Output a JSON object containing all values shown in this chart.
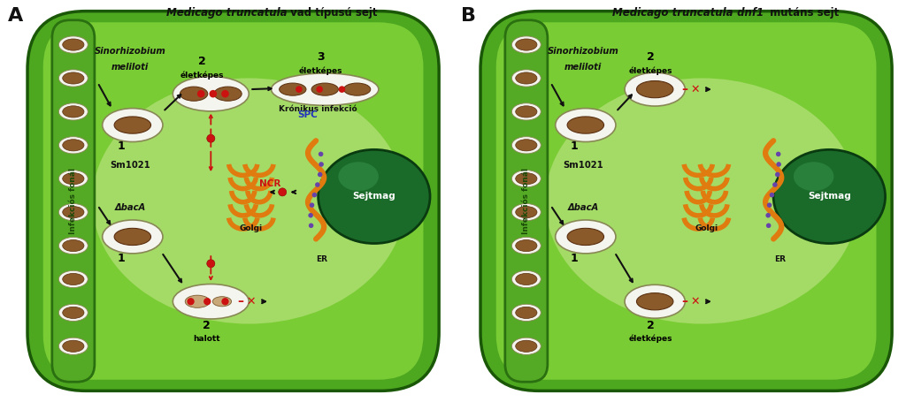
{
  "fig_width": 10.24,
  "fig_height": 4.55,
  "background_color": "#ffffff",
  "cell_outer_color": "#4da820",
  "cell_inner_color": "#7acc35",
  "cell_highlight_color": "#c8e890",
  "organelle_color": "#e07b10",
  "bacteroid_color": "#8b5a2b",
  "bacteroid_dark": "#5a3010",
  "red_color": "#cc1111",
  "blue_color": "#2233bb",
  "sejtmag_color": "#1a6b2a",
  "sejtmag_light": "#3a9a50",
  "arrow_color": "#111111",
  "thread_color": "#55aa25",
  "thread_border": "#2a7010",
  "white_color": "#f5f5f0",
  "panel_A_title1": "Medicago truncatula",
  "panel_A_title2": " vad típusú sejt",
  "panel_B_title1": "Medicago truncatula",
  "panel_B_title2": " dnf1",
  "panel_B_title3": " mutáns sejt",
  "label_infekcios": "Infekciós fonál",
  "label_sino1": "Sinorhizobium",
  "label_sino2": "meliloti",
  "label_sm": "Sm1021",
  "label_baca": "ΔbacA",
  "label_golgi": "Golgi",
  "label_er": "ER",
  "label_spc": "SPC",
  "label_ncr": "NCR",
  "label_sejtmag": "Sejtmag",
  "label_2_eletkepes": "2\néletképes",
  "label_3_eletkepes": "3\néletképes",
  "label_kronikus": "Krónikus infekció",
  "label_halott": "2\nhalott",
  "label_1": "1"
}
